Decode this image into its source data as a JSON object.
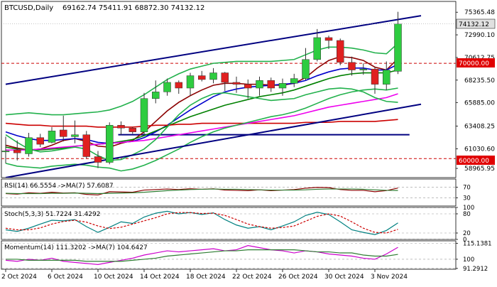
{
  "chart_data": [
    {
      "panel": "price",
      "type": "candlestick",
      "title": "BTCUSD,Daily",
      "ohlc_header": "69162.74 75411.91 68872.30 74132.12",
      "last_price_label": "74132.12",
      "level_label": "70000.00",
      "level_label_2": "60000.00",
      "ylim": [
        58000,
        76500
      ],
      "y_ticks": [
        "75365.48",
        "72990.10",
        "70612.75",
        "68235.50",
        "65885.00",
        "63408.25",
        "61030.60",
        "58965.95"
      ],
      "y_tick_values": [
        75365.48,
        72990.1,
        70612.75,
        68235.5,
        65885.0,
        63408.25,
        61030.6,
        58965.95
      ],
      "x_ticks": [
        "2 Oct 2024",
        "6 Oct 2024",
        "10 Oct 2024",
        "14 Oct 2024",
        "18 Oct 2024",
        "22 Oct 2024",
        "26 Oct 2024",
        "30 Oct 2024",
        "3 Nov 2024"
      ],
      "x_tick_index": [
        0,
        4,
        8,
        12,
        16,
        20,
        24,
        28,
        32
      ],
      "candles": [
        {
          "o": 60700,
          "h": 62300,
          "l": 59500,
          "c": 60800
        },
        {
          "o": 60900,
          "h": 61900,
          "l": 59800,
          "c": 60600
        },
        {
          "o": 60500,
          "h": 62700,
          "l": 60200,
          "c": 62200
        },
        {
          "o": 62200,
          "h": 62600,
          "l": 61200,
          "c": 61500
        },
        {
          "o": 61700,
          "h": 63300,
          "l": 61600,
          "c": 62900
        },
        {
          "o": 63000,
          "h": 64500,
          "l": 61800,
          "c": 62300
        },
        {
          "o": 62300,
          "h": 64000,
          "l": 61600,
          "c": 62500
        },
        {
          "o": 62500,
          "h": 62900,
          "l": 60000,
          "c": 60200
        },
        {
          "o": 60200,
          "h": 60800,
          "l": 59000,
          "c": 59600
        },
        {
          "o": 59600,
          "h": 63800,
          "l": 59400,
          "c": 63500
        },
        {
          "o": 63500,
          "h": 63900,
          "l": 62500,
          "c": 63200
        },
        {
          "o": 63200,
          "h": 63300,
          "l": 62600,
          "c": 62800
        },
        {
          "o": 62800,
          "h": 66900,
          "l": 62500,
          "c": 66300
        },
        {
          "o": 66300,
          "h": 68200,
          "l": 65800,
          "c": 67000
        },
        {
          "o": 67000,
          "h": 68400,
          "l": 66600,
          "c": 68000
        },
        {
          "o": 68000,
          "h": 68200,
          "l": 66800,
          "c": 67400
        },
        {
          "o": 67400,
          "h": 69000,
          "l": 66600,
          "c": 68700
        },
        {
          "o": 68700,
          "h": 69200,
          "l": 68100,
          "c": 68300
        },
        {
          "o": 68300,
          "h": 69500,
          "l": 67900,
          "c": 69000
        },
        {
          "o": 69000,
          "h": 69100,
          "l": 67100,
          "c": 68000
        },
        {
          "o": 68000,
          "h": 68600,
          "l": 66900,
          "c": 67800
        },
        {
          "o": 67800,
          "h": 68300,
          "l": 66300,
          "c": 67400
        },
        {
          "o": 67400,
          "h": 68600,
          "l": 66600,
          "c": 68200
        },
        {
          "o": 68200,
          "h": 68500,
          "l": 67000,
          "c": 67400
        },
        {
          "o": 67400,
          "h": 68400,
          "l": 66600,
          "c": 67900
        },
        {
          "o": 67900,
          "h": 68900,
          "l": 67500,
          "c": 68400
        },
        {
          "o": 68400,
          "h": 71600,
          "l": 68200,
          "c": 70400
        },
        {
          "o": 70400,
          "h": 73600,
          "l": 70200,
          "c": 72700
        },
        {
          "o": 72700,
          "h": 72900,
          "l": 71500,
          "c": 72400
        },
        {
          "o": 72400,
          "h": 72600,
          "l": 69800,
          "c": 70100
        },
        {
          "o": 70100,
          "h": 70700,
          "l": 68700,
          "c": 69300
        },
        {
          "o": 69300,
          "h": 70000,
          "l": 68800,
          "c": 69400
        },
        {
          "o": 69400,
          "h": 69600,
          "l": 66800,
          "c": 67800
        },
        {
          "o": 67800,
          "h": 70200,
          "l": 67200,
          "c": 69300
        },
        {
          "o": 69162.74,
          "h": 75411.91,
          "l": 68872.3,
          "c": 74132.12
        }
      ],
      "horizontal_levels": [
        {
          "value": 70000,
          "color": "#cc0000",
          "style": "dashed"
        },
        {
          "value": 60000,
          "color": "#cc0000",
          "style": "dashed"
        },
        {
          "value": 62500,
          "color": "#000080",
          "style": "solid",
          "from_index": 10
        }
      ],
      "trend_lines": [
        {
          "from": {
            "i": 0,
            "v": 67800
          },
          "to": {
            "i": 36,
            "v": 75000
          },
          "color": "#000080"
        },
        {
          "from": {
            "i": 0,
            "v": 58000
          },
          "to": {
            "i": 36,
            "v": 65700
          },
          "color": "#000080"
        }
      ],
      "indicator_lines": [
        {
          "color": "#8b0000",
          "values": [
            61400,
            61100,
            60900,
            61000,
            61400,
            61900,
            62100,
            61800,
            61300,
            61200,
            61600,
            61900,
            62800,
            63900,
            65000,
            65900,
            66600,
            67200,
            67700,
            67900,
            67900,
            67800,
            67800,
            67700,
            67700,
            67900,
            68500,
            69500,
            70300,
            70700,
            70600,
            70300,
            69600,
            69300,
            70500
          ]
        },
        {
          "color": "#0000cc",
          "values": [
            62800,
            62400,
            62100,
            61900,
            61900,
            62000,
            62100,
            62000,
            61700,
            61600,
            61700,
            61800,
            62200,
            62800,
            63500,
            64300,
            65100,
            65800,
            66500,
            67000,
            67300,
            67500,
            67600,
            67700,
            67800,
            67900,
            68200,
            68700,
            69100,
            69400,
            69500,
            69500,
            69300,
            69300,
            69900
          ]
        },
        {
          "color": "#008000",
          "values": [
            61200,
            61000,
            60900,
            60900,
            61000,
            61100,
            61300,
            61400,
            61500,
            61600,
            61800,
            62000,
            62400,
            62900,
            63400,
            63900,
            64400,
            64800,
            65200,
            65600,
            65900,
            66200,
            66500,
            66700,
            66900,
            67200,
            67600,
            68000,
            68400,
            68700,
            68900,
            69000,
            69000,
            69000,
            69300
          ]
        },
        {
          "color": "#cc0000",
          "values": [
            63700,
            63600,
            63500,
            63500,
            63400,
            63400,
            63400,
            63400,
            63300,
            63300,
            63300,
            63300,
            63400,
            63500,
            63500,
            63600,
            63600,
            63700,
            63700,
            63700,
            63700,
            63700,
            63700,
            63700,
            63700,
            63700,
            63800,
            63800,
            63800,
            63900,
            63900,
            63900,
            63900,
            64000,
            64100
          ]
        },
        {
          "color": "#ee00ee",
          "values": [
            60900,
            60900,
            60900,
            61000,
            61100,
            61200,
            61300,
            61400,
            61500,
            61600,
            61700,
            61800,
            61900,
            62100,
            62300,
            62500,
            62700,
            62900,
            63100,
            63300,
            63500,
            63700,
            63900,
            64100,
            64300,
            64500,
            64800,
            65100,
            65400,
            65600,
            65800,
            66000,
            66200,
            66400,
            66800
          ]
        },
        {
          "color": "#22b14c",
          "values": [
            62500,
            61700,
            61000,
            60700,
            60800,
            61000,
            61200,
            61000,
            60300,
            59800,
            59900,
            60400,
            61000,
            62000,
            63300,
            64600,
            65600,
            66300,
            66800,
            66900,
            66700,
            66500,
            66300,
            66100,
            66200,
            66300,
            66700,
            67000,
            67300,
            67400,
            67300,
            67000,
            66400,
            66000,
            65900
          ]
        },
        {
          "color": "#22b14c",
          "values": [
            64600,
            64700,
            64800,
            64700,
            64600,
            64600,
            64700,
            64800,
            64900,
            65100,
            65500,
            66000,
            66700,
            67500,
            68300,
            68900,
            69400,
            69700,
            70000,
            70100,
            70200,
            70200,
            70200,
            70200,
            70300,
            70400,
            70900,
            71400,
            71700,
            71700,
            71600,
            71400,
            71100,
            71000,
            72100
          ]
        },
        {
          "color": "#22b14c",
          "values": [
            59500,
            59200,
            59100,
            59000,
            59200,
            59300,
            59400,
            59300,
            59100,
            59000,
            58700,
            58900,
            59300,
            59800,
            60400,
            61000,
            61700,
            62300,
            62800,
            63200,
            63500,
            63800,
            64100,
            64400,
            64600,
            64900,
            65300,
            65800,
            66300,
            66700,
            67000,
            67200,
            67300,
            67200,
            67400
          ]
        }
      ]
    },
    {
      "panel": "rsi",
      "type": "line",
      "label": "RSI(14) 66.5554 ->MA(7) 57.6087",
      "ylim": [
        0,
        100
      ],
      "ticks": [
        "70",
        "30"
      ],
      "tick_values": [
        70,
        30
      ],
      "series": [
        {
          "color": "#8b0000",
          "values": [
            46,
            44,
            49,
            47,
            51,
            48,
            49,
            43,
            41,
            53,
            52,
            51,
            59,
            61,
            63,
            61,
            64,
            62,
            64,
            59,
            58,
            57,
            60,
            57,
            59,
            61,
            66,
            69,
            68,
            61,
            58,
            58,
            53,
            57,
            66.5554
          ]
        },
        {
          "color": "#2e7d32",
          "values": [
            47,
            46,
            46,
            46,
            47,
            47,
            48,
            47,
            46,
            47,
            48,
            49,
            51,
            54,
            57,
            59,
            61,
            62,
            63,
            62,
            62,
            61,
            60,
            59,
            59,
            59,
            60,
            62,
            63,
            63,
            63,
            62,
            60,
            58,
            57.6087
          ]
        }
      ]
    },
    {
      "panel": "stoch",
      "type": "line",
      "label": "Stoch(5,3,3) 51.7224 31.4292",
      "ylim": [
        0,
        100
      ],
      "ticks": [
        "100",
        "80",
        "20",
        "0"
      ],
      "tick_values": [
        100,
        80,
        20,
        0
      ],
      "series": [
        {
          "color": "#008080",
          "values": [
            30,
            25,
            35,
            48,
            60,
            58,
            62,
            40,
            22,
            38,
            55,
            50,
            70,
            82,
            88,
            80,
            84,
            78,
            83,
            62,
            45,
            35,
            40,
            30,
            42,
            55,
            75,
            85,
            78,
            55,
            30,
            22,
            15,
            28,
            51.7224
          ]
        },
        {
          "color": "#cc0000",
          "style": "dashed",
          "values": [
            35,
            30,
            30,
            36,
            48,
            56,
            60,
            54,
            42,
            34,
            38,
            48,
            58,
            68,
            80,
            84,
            84,
            81,
            82,
            75,
            62,
            48,
            40,
            35,
            37,
            42,
            57,
            72,
            80,
            73,
            55,
            35,
            22,
            20,
            31.4292
          ]
        }
      ]
    },
    {
      "panel": "momentum",
      "type": "line",
      "label": "Momentum(14) 111.3202 ->MA(7) 104.6427",
      "ylim": [
        90.5,
        117.5
      ],
      "ticks": [
        "115.1381",
        "100",
        "91.2912"
      ],
      "tick_values": [
        115.1381,
        100,
        91.2912
      ],
      "series": [
        {
          "color": "#cc00cc",
          "values": [
            99,
            98,
            100,
            99,
            101,
            98,
            97,
            96,
            95,
            97,
            99,
            101,
            104,
            106,
            108,
            107,
            108,
            109,
            110,
            108,
            109,
            113,
            111,
            109,
            108,
            106,
            108,
            107,
            105,
            104,
            103,
            101,
            100,
            105,
            111.3202
          ]
        },
        {
          "color": "#2e7d32",
          "values": [
            100,
            100,
            99,
            99,
            99,
            99,
            99,
            98,
            98,
            98,
            98,
            99,
            100,
            101,
            103,
            104,
            105,
            106,
            107,
            108,
            108,
            109,
            109,
            109,
            109,
            109,
            108,
            107,
            107,
            106,
            106,
            104,
            103,
            103,
            104.6427
          ]
        }
      ]
    }
  ]
}
